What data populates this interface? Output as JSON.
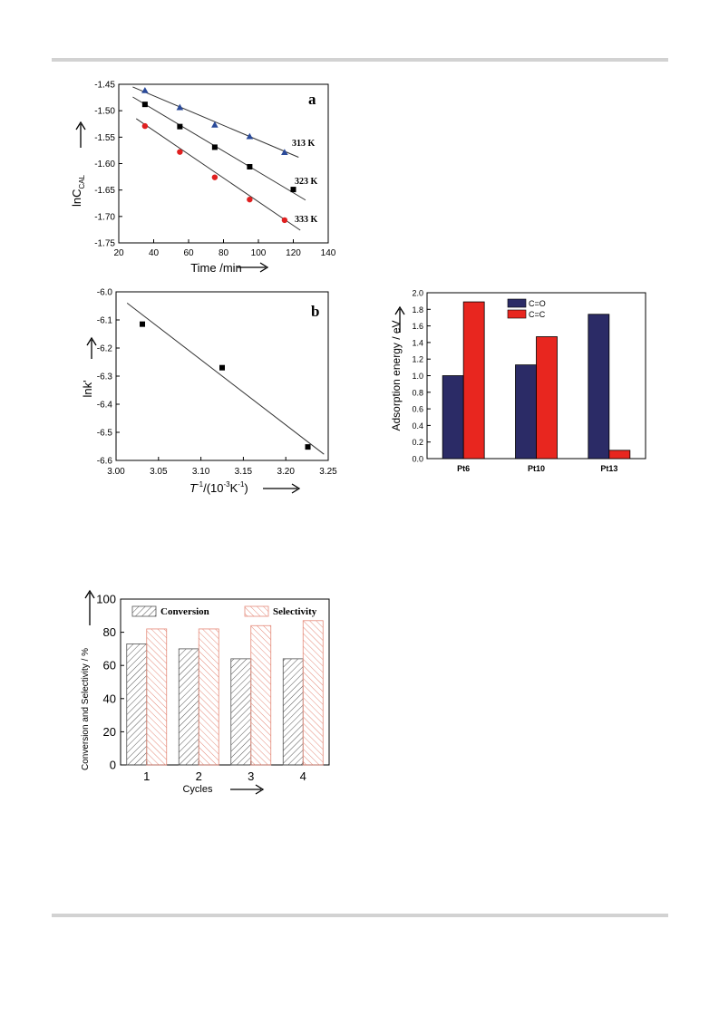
{
  "chart_data": [
    {
      "id": "a",
      "type": "scatter",
      "panel_label": "a",
      "xlabel": "Time /min",
      "ylabel_main": "lnC",
      "ylabel_sub": "CAL",
      "xlim": [
        20,
        140
      ],
      "ylim": [
        -1.75,
        -1.45
      ],
      "xticks": [
        "20",
        "40",
        "60",
        "80",
        "100",
        "120",
        "140"
      ],
      "yticks": [
        "-1.75",
        "-1.70",
        "-1.65",
        "-1.60",
        "-1.55",
        "-1.50",
        "-1.45"
      ],
      "series": [
        {
          "name": "313 K",
          "marker": "triangle",
          "color": "#2a4a9a",
          "x": [
            35,
            55,
            75,
            95,
            115
          ],
          "y": [
            -1.462,
            -1.494,
            -1.527,
            -1.549,
            -1.579
          ],
          "fit": [
            [
              28,
              -1.455
            ],
            [
              123,
              -1.588
            ]
          ]
        },
        {
          "name": "323 K",
          "marker": "square",
          "color": "#000000",
          "x": [
            35,
            55,
            75,
            95,
            120
          ],
          "y": [
            -1.488,
            -1.53,
            -1.569,
            -1.606,
            -1.649
          ],
          "fit": [
            [
              28,
              -1.474
            ],
            [
              127,
              -1.669
            ]
          ]
        },
        {
          "name": "333 K",
          "marker": "circle",
          "color": "#e02020",
          "x": [
            35,
            55,
            75,
            95,
            115
          ],
          "y": [
            -1.529,
            -1.578,
            -1.626,
            -1.668,
            -1.707
          ],
          "fit": [
            [
              30,
              -1.515
            ],
            [
              124,
              -1.726
            ]
          ]
        }
      ]
    },
    {
      "id": "b",
      "type": "scatter",
      "panel_label": "b",
      "xlabel_main": "T",
      "xlabel_rest": "/(10",
      "xlabel_sup1": "-1",
      "xlabel_sup2": "-3",
      "xlabel_k": "K",
      "xlabel_sup3": "-1",
      "xlabel_close": ")",
      "ylabel": "lnk'",
      "xlim": [
        3.0,
        3.25
      ],
      "ylim": [
        -6.6,
        -6.0
      ],
      "xticks": [
        "3.00",
        "3.05",
        "3.10",
        "3.15",
        "3.20",
        "3.25"
      ],
      "yticks": [
        "-6.6",
        "-6.5",
        "-6.4",
        "-6.3",
        "-6.2",
        "-6.1",
        "-6.0"
      ],
      "series": [
        {
          "marker": "square",
          "color": "#000000",
          "x": [
            3.031,
            3.125,
            3.226
          ],
          "y": [
            -6.115,
            -6.27,
            -6.552
          ],
          "fit": [
            [
              3.013,
              -6.04
            ],
            [
              3.245,
              -6.578
            ]
          ]
        }
      ]
    },
    {
      "id": "c",
      "type": "bar",
      "ylabel": "Adsorption energy / eV",
      "ylim": [
        0,
        2.0
      ],
      "yticks": [
        "0.0",
        "0.2",
        "0.4",
        "0.6",
        "0.8",
        "1.0",
        "1.2",
        "1.4",
        "1.6",
        "1.8",
        "2.0"
      ],
      "categories": [
        "Pt6",
        "Pt10",
        "Pt13"
      ],
      "series": [
        {
          "name": "C=O",
          "color": "#2b2b66",
          "values": [
            1.0,
            1.13,
            1.74
          ]
        },
        {
          "name": "C=C",
          "color": "#e8261f",
          "values": [
            1.89,
            1.47,
            0.1
          ]
        }
      ],
      "legend": "top-left"
    },
    {
      "id": "d",
      "type": "bar",
      "xlabel": "Cycles",
      "ylabel": "Conversion and Selectivity / %",
      "ylim": [
        0,
        100
      ],
      "yticks": [
        "0",
        "20",
        "40",
        "60",
        "80",
        "100"
      ],
      "categories": [
        "1",
        "2",
        "3",
        "4"
      ],
      "series": [
        {
          "name": "Conversion",
          "color": "#555555",
          "values": [
            73,
            70,
            64,
            64
          ]
        },
        {
          "name": "Selectivity",
          "color": "#e58a7a",
          "values": [
            82,
            82,
            84,
            87
          ]
        }
      ],
      "legend": "top"
    }
  ]
}
